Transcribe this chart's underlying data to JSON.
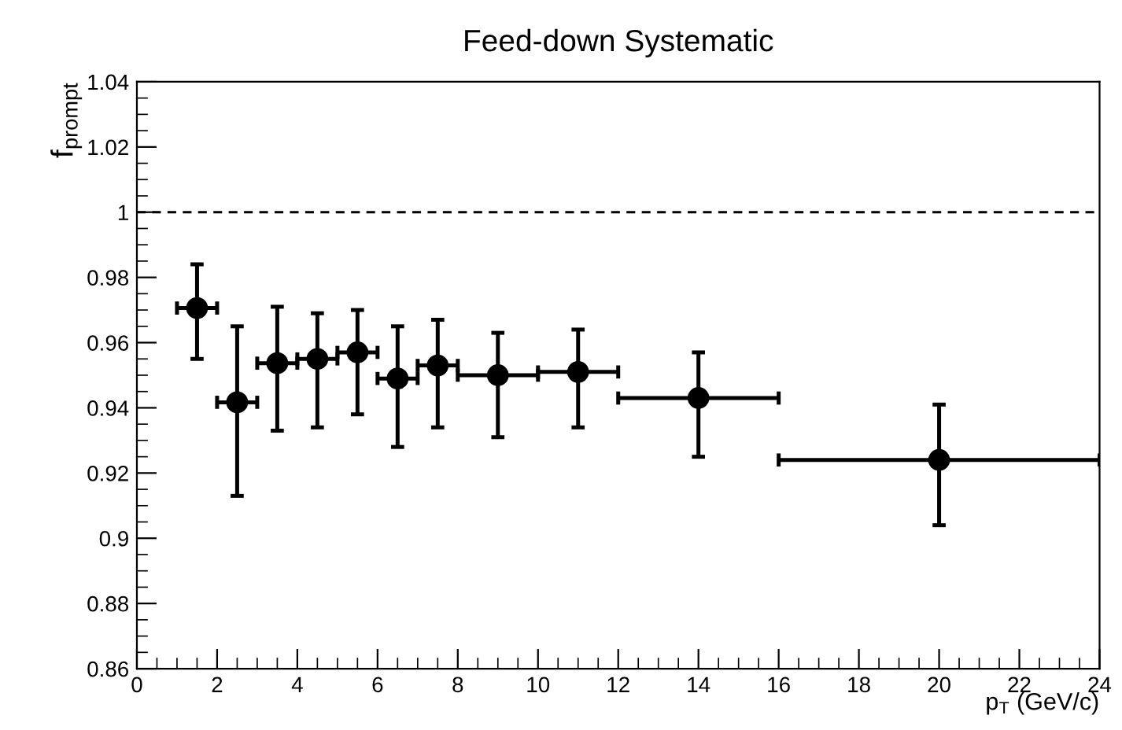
{
  "chart_data": {
    "type": "scatter",
    "title": "Feed-down Systematic",
    "xlabel": "p$_{T}$ (GeV/c)",
    "ylabel": "f$_{prompt}$",
    "x": [
      1.5,
      2.5,
      3.5,
      4.5,
      5.5,
      6.5,
      7.5,
      9,
      11,
      14,
      20
    ],
    "values": [
      0.9706,
      0.9417,
      0.9537,
      0.955,
      0.957,
      0.949,
      0.953,
      0.95,
      0.951,
      0.943,
      0.924
    ],
    "errors": [
      [
        0.955,
        0.984
      ],
      [
        0.913,
        0.965
      ],
      [
        0.933,
        0.971
      ],
      [
        0.934,
        0.969
      ],
      [
        0.938,
        0.97
      ],
      [
        0.928,
        0.965
      ],
      [
        0.934,
        0.967
      ],
      [
        0.931,
        0.963
      ],
      [
        0.934,
        0.964
      ],
      [
        0.925,
        0.957
      ],
      [
        0.904,
        0.941
      ]
    ],
    "xerrors": [
      [
        1,
        2
      ],
      [
        2,
        3
      ],
      [
        3,
        4
      ],
      [
        4,
        5
      ],
      [
        5,
        6
      ],
      [
        6,
        7
      ],
      [
        7,
        8
      ],
      [
        8,
        10
      ],
      [
        10,
        12
      ],
      [
        12,
        16
      ],
      [
        16,
        24
      ]
    ],
    "color": "#000000",
    "marker": "circle",
    "xlim": [
      0,
      24
    ],
    "xticks": [
      0,
      2,
      4,
      6,
      8,
      10,
      12,
      14,
      16,
      18,
      20,
      22,
      24
    ],
    "ylim": [
      0.86,
      1.04
    ],
    "yticks": [
      0.86,
      0.88,
      0.9,
      0.92,
      0.94,
      0.96,
      0.98,
      1,
      1.02,
      1.04
    ],
    "ref_lines": [
      {
        "axis": "y",
        "value": 1,
        "line_style": "dashed",
        "color": "#000000"
      }
    ],
    "grid": false
  }
}
